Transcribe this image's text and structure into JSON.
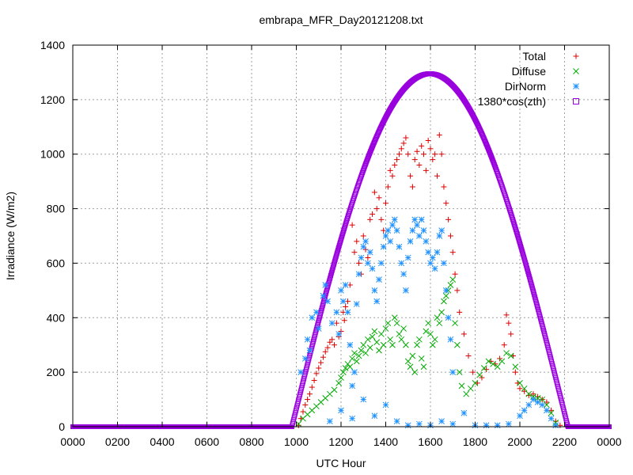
{
  "chart_data": {
    "type": "scatter",
    "title": "embrapa_MFR_Day20121208.txt",
    "xlabel": "UTC Hour",
    "ylabel": "Irradiance (W/m2)",
    "xlim": [
      0,
      24
    ],
    "ylim": [
      0,
      1400
    ],
    "x_ticks": [
      {
        "value": 0,
        "label": "0000"
      },
      {
        "value": 2,
        "label": "0200"
      },
      {
        "value": 4,
        "label": "0400"
      },
      {
        "value": 6,
        "label": "0600"
      },
      {
        "value": 8,
        "label": "0800"
      },
      {
        "value": 10,
        "label": "1000"
      },
      {
        "value": 12,
        "label": "1200"
      },
      {
        "value": 14,
        "label": "1400"
      },
      {
        "value": 16,
        "label": "1600"
      },
      {
        "value": 18,
        "label": "1800"
      },
      {
        "value": 20,
        "label": "2000"
      },
      {
        "value": 22,
        "label": "2200"
      },
      {
        "value": 24,
        "label": "0000"
      }
    ],
    "y_ticks": [
      0,
      200,
      400,
      600,
      800,
      1000,
      1200,
      1400
    ],
    "grid": true,
    "legend_position": "top-right",
    "series": [
      {
        "name": "Total",
        "color": "#dd0000",
        "marker": "plus",
        "points": [
          [
            10.1,
            5
          ],
          [
            10.2,
            30
          ],
          [
            10.3,
            55
          ],
          [
            10.4,
            80
          ],
          [
            10.5,
            100
          ],
          [
            10.6,
            120
          ],
          [
            10.7,
            145
          ],
          [
            10.8,
            170
          ],
          [
            10.9,
            195
          ],
          [
            11.0,
            215
          ],
          [
            11.1,
            235
          ],
          [
            11.2,
            255
          ],
          [
            11.3,
            275
          ],
          [
            11.4,
            290
          ],
          [
            11.5,
            310
          ],
          [
            11.6,
            320
          ],
          [
            11.7,
            300
          ],
          [
            11.8,
            380
          ],
          [
            11.9,
            330
          ],
          [
            12.0,
            350
          ],
          [
            12.1,
            420
          ],
          [
            12.15,
            390
          ],
          [
            12.2,
            440
          ],
          [
            12.3,
            460
          ],
          [
            12.4,
            520
          ],
          [
            12.5,
            740
          ],
          [
            12.6,
            640
          ],
          [
            12.7,
            680
          ],
          [
            12.8,
            600
          ],
          [
            12.9,
            560
          ],
          [
            13.0,
            700
          ],
          [
            13.1,
            650
          ],
          [
            13.2,
            620
          ],
          [
            13.3,
            760
          ],
          [
            13.4,
            780
          ],
          [
            13.5,
            860
          ],
          [
            13.6,
            800
          ],
          [
            13.7,
            840
          ],
          [
            13.8,
            760
          ],
          [
            13.9,
            720
          ],
          [
            14.0,
            820
          ],
          [
            14.1,
            880
          ],
          [
            14.2,
            940
          ],
          [
            14.3,
            920
          ],
          [
            14.4,
            960
          ],
          [
            14.5,
            980
          ],
          [
            14.6,
            1000
          ],
          [
            14.7,
            1020
          ],
          [
            14.8,
            1040
          ],
          [
            14.9,
            1060
          ],
          [
            15.0,
            1000
          ],
          [
            15.1,
            920
          ],
          [
            15.2,
            880
          ],
          [
            15.3,
            980
          ],
          [
            15.4,
            1010
          ],
          [
            15.5,
            960
          ],
          [
            15.6,
            1030
          ],
          [
            15.7,
            1000
          ],
          [
            15.8,
            940
          ],
          [
            15.9,
            1050
          ],
          [
            16.0,
            1020
          ],
          [
            16.1,
            980
          ],
          [
            16.2,
            1000
          ],
          [
            16.3,
            920
          ],
          [
            16.4,
            1070
          ],
          [
            16.5,
            1000
          ],
          [
            16.6,
            880
          ],
          [
            16.7,
            820
          ],
          [
            16.8,
            760
          ],
          [
            16.9,
            700
          ],
          [
            17.0,
            640
          ],
          [
            17.1,
            560
          ],
          [
            17.2,
            500
          ],
          [
            17.3,
            420
          ],
          [
            17.5,
            340
          ],
          [
            17.7,
            260
          ],
          [
            17.9,
            200
          ],
          [
            18.1,
            160
          ],
          [
            18.3,
            180
          ],
          [
            18.5,
            210
          ],
          [
            18.7,
            240
          ],
          [
            18.9,
            230
          ],
          [
            19.1,
            250
          ],
          [
            19.3,
            300
          ],
          [
            19.4,
            410
          ],
          [
            19.5,
            380
          ],
          [
            19.6,
            340
          ],
          [
            19.7,
            260
          ],
          [
            19.8,
            200
          ],
          [
            19.9,
            160
          ],
          [
            20.0,
            140
          ],
          [
            20.2,
            130
          ],
          [
            20.4,
            115
          ],
          [
            20.6,
            120
          ],
          [
            20.8,
            110
          ],
          [
            21.0,
            100
          ],
          [
            21.2,
            90
          ],
          [
            21.4,
            60
          ],
          [
            21.6,
            20
          ],
          [
            21.8,
            5
          ]
        ]
      },
      {
        "name": "Diffuse",
        "color": "#00aa00",
        "marker": "cross",
        "points": [
          [
            10.1,
            10
          ],
          [
            10.3,
            30
          ],
          [
            10.5,
            45
          ],
          [
            10.7,
            60
          ],
          [
            10.9,
            75
          ],
          [
            11.1,
            90
          ],
          [
            11.3,
            105
          ],
          [
            11.5,
            120
          ],
          [
            11.7,
            135
          ],
          [
            11.9,
            160
          ],
          [
            12.0,
            180
          ],
          [
            12.1,
            200
          ],
          [
            12.2,
            215
          ],
          [
            12.3,
            230
          ],
          [
            12.4,
            220
          ],
          [
            12.5,
            250
          ],
          [
            12.6,
            270
          ],
          [
            12.7,
            240
          ],
          [
            12.8,
            260
          ],
          [
            12.9,
            280
          ],
          [
            13.0,
            300
          ],
          [
            13.1,
            270
          ],
          [
            13.2,
            320
          ],
          [
            13.3,
            290
          ],
          [
            13.4,
            330
          ],
          [
            13.5,
            350
          ],
          [
            13.6,
            310
          ],
          [
            13.7,
            280
          ],
          [
            13.8,
            340
          ],
          [
            13.9,
            300
          ],
          [
            14.0,
            360
          ],
          [
            14.1,
            380
          ],
          [
            14.2,
            320
          ],
          [
            14.3,
            300
          ],
          [
            14.4,
            400
          ],
          [
            14.5,
            380
          ],
          [
            14.6,
            340
          ],
          [
            14.7,
            320
          ],
          [
            14.8,
            360
          ],
          [
            14.9,
            300
          ],
          [
            15.0,
            240
          ],
          [
            15.1,
            220
          ],
          [
            15.2,
            260
          ],
          [
            15.3,
            200
          ],
          [
            15.4,
            300
          ],
          [
            15.5,
            320
          ],
          [
            15.6,
            250
          ],
          [
            15.7,
            220
          ],
          [
            15.8,
            350
          ],
          [
            15.9,
            380
          ],
          [
            16.0,
            340
          ],
          [
            16.1,
            300
          ],
          [
            16.2,
            320
          ],
          [
            16.3,
            400
          ],
          [
            16.4,
            380
          ],
          [
            16.5,
            420
          ],
          [
            16.6,
            460
          ],
          [
            16.7,
            480
          ],
          [
            16.8,
            500
          ],
          [
            16.9,
            520
          ],
          [
            17.0,
            540
          ],
          [
            17.1,
            380
          ],
          [
            17.2,
            300
          ],
          [
            17.3,
            200
          ],
          [
            17.4,
            150
          ],
          [
            17.6,
            120
          ],
          [
            17.8,
            140
          ],
          [
            18.0,
            160
          ],
          [
            18.2,
            190
          ],
          [
            18.4,
            215
          ],
          [
            18.6,
            240
          ],
          [
            18.8,
            230
          ],
          [
            19.0,
            220
          ],
          [
            19.2,
            240
          ],
          [
            19.4,
            270
          ],
          [
            19.6,
            260
          ],
          [
            19.8,
            220
          ],
          [
            20.0,
            160
          ],
          [
            20.2,
            140
          ],
          [
            20.4,
            120
          ],
          [
            20.6,
            110
          ],
          [
            20.8,
            105
          ],
          [
            21.0,
            100
          ],
          [
            21.2,
            80
          ],
          [
            21.4,
            50
          ],
          [
            21.6,
            15
          ]
        ]
      },
      {
        "name": "DirNorm",
        "color": "#1e90ff",
        "marker": "star",
        "points": [
          [
            10.2,
            200
          ],
          [
            10.4,
            250
          ],
          [
            10.5,
            320
          ],
          [
            10.6,
            280
          ],
          [
            10.7,
            400
          ],
          [
            10.9,
            420
          ],
          [
            11.0,
            360
          ],
          [
            11.2,
            480
          ],
          [
            11.3,
            520
          ],
          [
            11.4,
            460
          ],
          [
            11.6,
            380
          ],
          [
            11.8,
            420
          ],
          [
            11.9,
            340
          ],
          [
            12.0,
            500
          ],
          [
            12.1,
            460
          ],
          [
            12.2,
            520
          ],
          [
            12.3,
            420
          ],
          [
            12.4,
            300
          ],
          [
            12.5,
            150
          ],
          [
            12.6,
            200
          ],
          [
            12.7,
            450
          ],
          [
            12.8,
            560
          ],
          [
            12.9,
            620
          ],
          [
            13.0,
            660
          ],
          [
            13.1,
            680
          ],
          [
            13.2,
            600
          ],
          [
            13.3,
            640
          ],
          [
            13.4,
            580
          ],
          [
            13.5,
            500
          ],
          [
            13.6,
            460
          ],
          [
            13.7,
            540
          ],
          [
            13.8,
            600
          ],
          [
            13.9,
            660
          ],
          [
            14.0,
            700
          ],
          [
            14.1,
            720
          ],
          [
            14.2,
            680
          ],
          [
            14.3,
            740
          ],
          [
            14.4,
            760
          ],
          [
            14.5,
            720
          ],
          [
            14.6,
            660
          ],
          [
            14.7,
            600
          ],
          [
            14.8,
            560
          ],
          [
            14.9,
            500
          ],
          [
            15.0,
            620
          ],
          [
            15.1,
            680
          ],
          [
            15.2,
            720
          ],
          [
            15.3,
            760
          ],
          [
            15.4,
            740
          ],
          [
            15.5,
            700
          ],
          [
            15.6,
            760
          ],
          [
            15.7,
            720
          ],
          [
            15.8,
            680
          ],
          [
            15.9,
            640
          ],
          [
            16.0,
            600
          ],
          [
            16.1,
            620
          ],
          [
            16.2,
            580
          ],
          [
            16.3,
            640
          ],
          [
            16.4,
            700
          ],
          [
            16.5,
            720
          ],
          [
            16.6,
            600
          ],
          [
            16.7,
            500
          ],
          [
            16.8,
            400
          ],
          [
            16.9,
            320
          ],
          [
            17.0,
            200
          ],
          [
            11.5,
            20
          ],
          [
            12.0,
            60
          ],
          [
            12.5,
            30
          ],
          [
            13.0,
            100
          ],
          [
            13.5,
            40
          ],
          [
            14.0,
            80
          ],
          [
            14.5,
            20
          ],
          [
            15.0,
            5
          ],
          [
            15.5,
            10
          ],
          [
            16.0,
            5
          ],
          [
            16.5,
            20
          ],
          [
            17.0,
            10
          ],
          [
            17.5,
            50
          ],
          [
            18.0,
            5
          ],
          [
            18.5,
            5
          ],
          [
            19.0,
            5
          ],
          [
            19.5,
            10
          ],
          [
            20.0,
            40
          ],
          [
            20.2,
            60
          ],
          [
            20.4,
            80
          ],
          [
            20.6,
            100
          ],
          [
            20.8,
            90
          ],
          [
            21.0,
            80
          ],
          [
            21.2,
            60
          ],
          [
            21.4,
            30
          ],
          [
            21.6,
            5
          ]
        ]
      },
      {
        "name": "1380*cos(zth)",
        "color": "#9900dd",
        "marker": "square",
        "formula": "1295*sin(pi*(x-9.8)/12.35) for 9.8<=x<=22.15, else 0"
      }
    ]
  }
}
